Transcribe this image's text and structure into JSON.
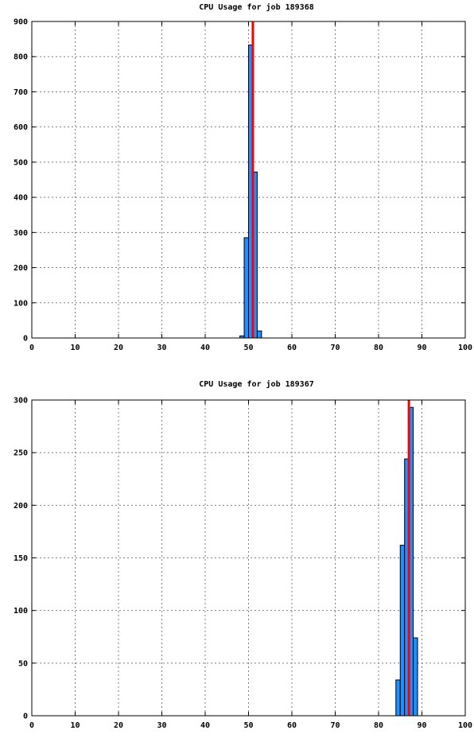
{
  "chart_data": [
    {
      "type": "bar",
      "title": "CPU Usage for job 189368",
      "xlim": [
        0,
        100
      ],
      "ylim": [
        0,
        900
      ],
      "xticks": [
        0,
        10,
        20,
        30,
        40,
        50,
        60,
        70,
        80,
        90,
        100
      ],
      "yticks": [
        0,
        100,
        200,
        300,
        400,
        500,
        600,
        700,
        800,
        900
      ],
      "bin_width": 1,
      "bins": [
        {
          "x": 48,
          "value": 6
        },
        {
          "x": 49,
          "value": 285
        },
        {
          "x": 50,
          "value": 833
        },
        {
          "x": 51,
          "value": 472
        },
        {
          "x": 52,
          "value": 20
        }
      ],
      "reference_line": 51,
      "grid": true,
      "bar_color": "#1e90ff",
      "line_color": "#ff0000"
    },
    {
      "type": "bar",
      "title": "CPU Usage for job 189367",
      "xlim": [
        0,
        100
      ],
      "ylim": [
        0,
        300
      ],
      "xticks": [
        0,
        10,
        20,
        30,
        40,
        50,
        60,
        70,
        80,
        90,
        100
      ],
      "yticks": [
        0,
        50,
        100,
        150,
        200,
        250,
        300
      ],
      "bin_width": 1,
      "bins": [
        {
          "x": 84,
          "value": 34
        },
        {
          "x": 85,
          "value": 162
        },
        {
          "x": 86,
          "value": 244
        },
        {
          "x": 87,
          "value": 293
        },
        {
          "x": 88,
          "value": 74
        }
      ],
      "reference_line": 87,
      "grid": true,
      "bar_color": "#1e90ff",
      "line_color": "#ff0000"
    }
  ]
}
